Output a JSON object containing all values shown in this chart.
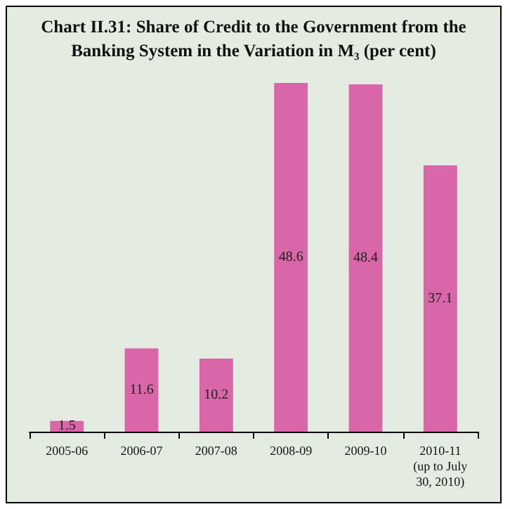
{
  "chart_data": {
    "type": "bar",
    "title": "Chart II.31: Share of Credit to the Government from the Banking System in the Variation in M₃ (per cent)",
    "categories": [
      "2005-06",
      "2006-07",
      "2007-08",
      "2008-09",
      "2009-10",
      "2010-11\n(up to July\n30, 2010)"
    ],
    "values": [
      1.5,
      11.6,
      10.2,
      48.6,
      48.4,
      37.1
    ],
    "color": "#d866a8",
    "data_labels": true
  }
}
